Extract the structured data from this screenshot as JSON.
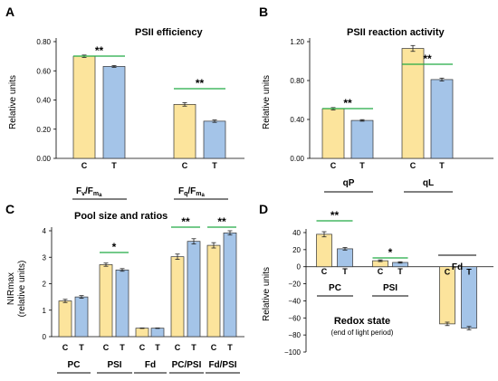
{
  "colors": {
    "control": "#FCE49C",
    "treatment": "#A4C4E8",
    "significance_line": "#22AA44",
    "axis": "#000000"
  },
  "chart_data": [
    {
      "type": "bar",
      "panel": "A",
      "title": "PSII efficiency",
      "ylabel": "Relative units",
      "ylim": [
        0,
        0.8
      ],
      "yticks": [
        "0.00",
        "0.20",
        "0.40",
        "0.60",
        "0.80"
      ],
      "ytick_values": [
        0,
        0.2,
        0.4,
        0.6,
        0.8
      ],
      "series_labels": [
        "C",
        "T"
      ],
      "groups": [
        {
          "label_main": "F",
          "label_sub1": "v",
          "label_mid": "/F",
          "label_sub2": "m",
          "label_sub3": "a",
          "values": [
            0.7,
            0.63
          ],
          "errors": [
            0.008,
            0.006
          ],
          "sig": "**"
        },
        {
          "label_main": "F",
          "label_sub1": "q",
          "label_mid": "/F",
          "label_sub2": "m",
          "label_sub3": "a",
          "values": [
            0.37,
            0.255
          ],
          "errors": [
            0.012,
            0.008
          ],
          "sig": "**"
        }
      ]
    },
    {
      "type": "bar",
      "panel": "B",
      "title": "PSII reaction activity",
      "ylabel": "Relative units",
      "ylim": [
        0,
        1.2
      ],
      "yticks": [
        "0.00",
        "0.40",
        "0.80",
        "1.20"
      ],
      "ytick_values": [
        0,
        0.4,
        0.8,
        1.2
      ],
      "series_labels": [
        "C",
        "T"
      ],
      "groups": [
        {
          "label": "qP",
          "values": [
            0.51,
            0.39
          ],
          "errors": [
            0.012,
            0.008
          ],
          "sig": "**"
        },
        {
          "label": "qL",
          "values": [
            1.13,
            0.81
          ],
          "errors": [
            0.03,
            0.015
          ],
          "sig": "**"
        }
      ]
    },
    {
      "type": "bar",
      "panel": "C",
      "title": "Pool size and ratios",
      "ylabel_line1": "NIRmax",
      "ylabel_line2": "(relative units)",
      "ylim": [
        0,
        4
      ],
      "yticks": [
        "0",
        "1",
        "2",
        "3",
        "4"
      ],
      "ytick_values": [
        0,
        1,
        2,
        3,
        4
      ],
      "series_labels": [
        "C",
        "T"
      ],
      "groups": [
        {
          "label": "PC",
          "values": [
            1.35,
            1.5
          ],
          "errors": [
            0.06,
            0.05
          ],
          "sig": ""
        },
        {
          "label": "PSI",
          "values": [
            2.72,
            2.52
          ],
          "errors": [
            0.06,
            0.05
          ],
          "sig": "*"
        },
        {
          "label": "Fd",
          "values": [
            0.32,
            0.32
          ],
          "errors": [
            0.01,
            0.01
          ],
          "sig": ""
        },
        {
          "label": "PC/PSI",
          "values": [
            3.02,
            3.6
          ],
          "errors": [
            0.1,
            0.1
          ],
          "sig": "**"
        },
        {
          "label": "Fd/PSI",
          "values": [
            3.45,
            3.92
          ],
          "errors": [
            0.1,
            0.08
          ],
          "sig": "**"
        }
      ]
    },
    {
      "type": "bar",
      "panel": "D",
      "title": "Redox state",
      "subtitle": "(end of light period)",
      "ylabel": "Relative units",
      "ylim": [
        -100,
        40
      ],
      "yticks": [
        "40",
        "20",
        "0",
        "−20",
        "−40",
        "−60",
        "−80",
        "−100"
      ],
      "ytick_values": [
        40,
        20,
        0,
        -20,
        -40,
        -60,
        -80,
        -100
      ],
      "series_labels": [
        "C",
        "T"
      ],
      "groups": [
        {
          "label": "PC",
          "values": [
            38,
            21
          ],
          "errors": [
            3,
            1.5
          ],
          "sig": "**"
        },
        {
          "label": "PSI",
          "values": [
            7,
            5
          ],
          "errors": [
            1,
            0.8
          ],
          "sig": "*"
        },
        {
          "label": "Fd",
          "values": [
            -67,
            -72
          ],
          "errors": [
            2,
            2
          ],
          "sig": ""
        }
      ]
    }
  ]
}
